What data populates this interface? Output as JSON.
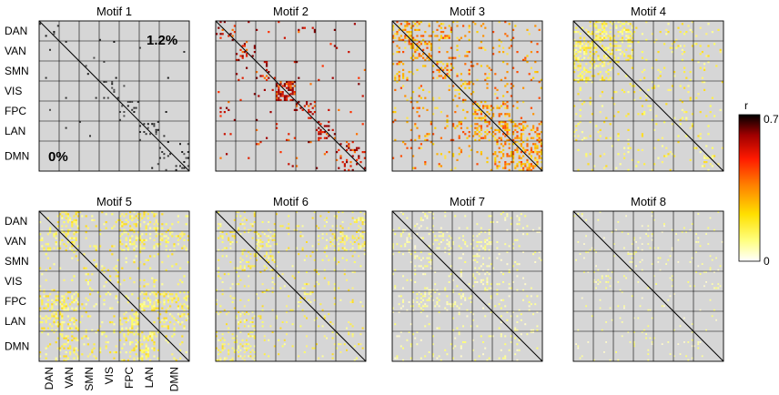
{
  "chart_data": {
    "type": "heatmap",
    "networks": [
      "DAN",
      "VAN",
      "SMN",
      "VIS",
      "FPC",
      "LAN",
      "DMN"
    ],
    "colorbar": {
      "label": "r",
      "min": 0,
      "max": 0.7,
      "ticks": [
        "0.7",
        "0"
      ]
    },
    "colors": {
      "background": "#d6d6d6",
      "grid": "#000000"
    },
    "panels": [
      {
        "title": "Motif 1",
        "annotations": {
          "upper": "1.2%",
          "lower": "0%"
        },
        "pattern": "sparse-black-diagonal-blocks"
      },
      {
        "title": "Motif 2",
        "pattern": "red-diagonal-blocks, strongest VIS-VIS"
      },
      {
        "title": "Motif 3",
        "pattern": "orange-yellow within-network blocks"
      },
      {
        "title": "Motif 4",
        "pattern": "yellow, VAN/SMN with DAN"
      },
      {
        "title": "Motif 5",
        "pattern": "yellow, DAN-VAN and FPC/LAN/DMN"
      },
      {
        "title": "Motif 6",
        "pattern": "light yellow, scattered"
      },
      {
        "title": "Motif 7",
        "pattern": "light yellow, scattered"
      },
      {
        "title": "Motif 8",
        "pattern": "very sparse light yellow"
      }
    ]
  }
}
